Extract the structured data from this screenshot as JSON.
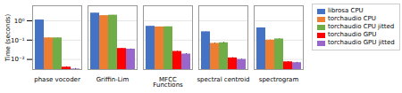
{
  "chart_data": {
    "type": "bar",
    "categories": [
      "phase vocoder",
      "Griffin-Lim",
      "MFCC",
      "spectral centroid",
      "spectrogram"
    ],
    "series": [
      {
        "name": "librosa CPU",
        "color": "#4472c4",
        "values": [
          1.1,
          2.5,
          0.52,
          0.27,
          0.43
        ],
        "errors": [
          0.008,
          0.02,
          0.004,
          0.003,
          0.004
        ]
      },
      {
        "name": "torchaudio CPU",
        "color": "#ed7d31",
        "values": [
          0.13,
          1.85,
          0.48,
          0.068,
          0.1
        ],
        "errors": [
          0.002,
          0.015,
          0.004,
          0.003,
          0.002
        ]
      },
      {
        "name": "torchaudio CPU jitted",
        "color": "#70ad47",
        "values": [
          0.13,
          1.95,
          0.49,
          0.073,
          0.115
        ],
        "errors": [
          0.002,
          0.015,
          0.004,
          0.004,
          0.003
        ]
      },
      {
        "name": "torchaudio GPU",
        "color": "#ff0000",
        "values": [
          0.004,
          0.037,
          0.026,
          0.012,
          0.0075
        ],
        "errors": [
          0.0002,
          0.001,
          0.001,
          0.0005,
          0.0003
        ]
      },
      {
        "name": "torchaudio GPU jitted",
        "color": "#9966cc",
        "values": [
          0.0032,
          0.034,
          0.019,
          0.01,
          0.0068
        ],
        "errors": [
          0.0002,
          0.001,
          0.001,
          0.0004,
          0.0003
        ]
      }
    ],
    "xlabel": "Functions",
    "ylabel": "Time (seconds)",
    "log": "y",
    "ylim": [
      0.003,
      6.0
    ],
    "yticks": [
      {
        "value": 0.01,
        "label": "10⁻²"
      },
      {
        "value": 0.1,
        "label": "10⁻¹"
      },
      {
        "value": 1,
        "label": "10⁰"
      }
    ],
    "grid": true,
    "legend": "right"
  }
}
